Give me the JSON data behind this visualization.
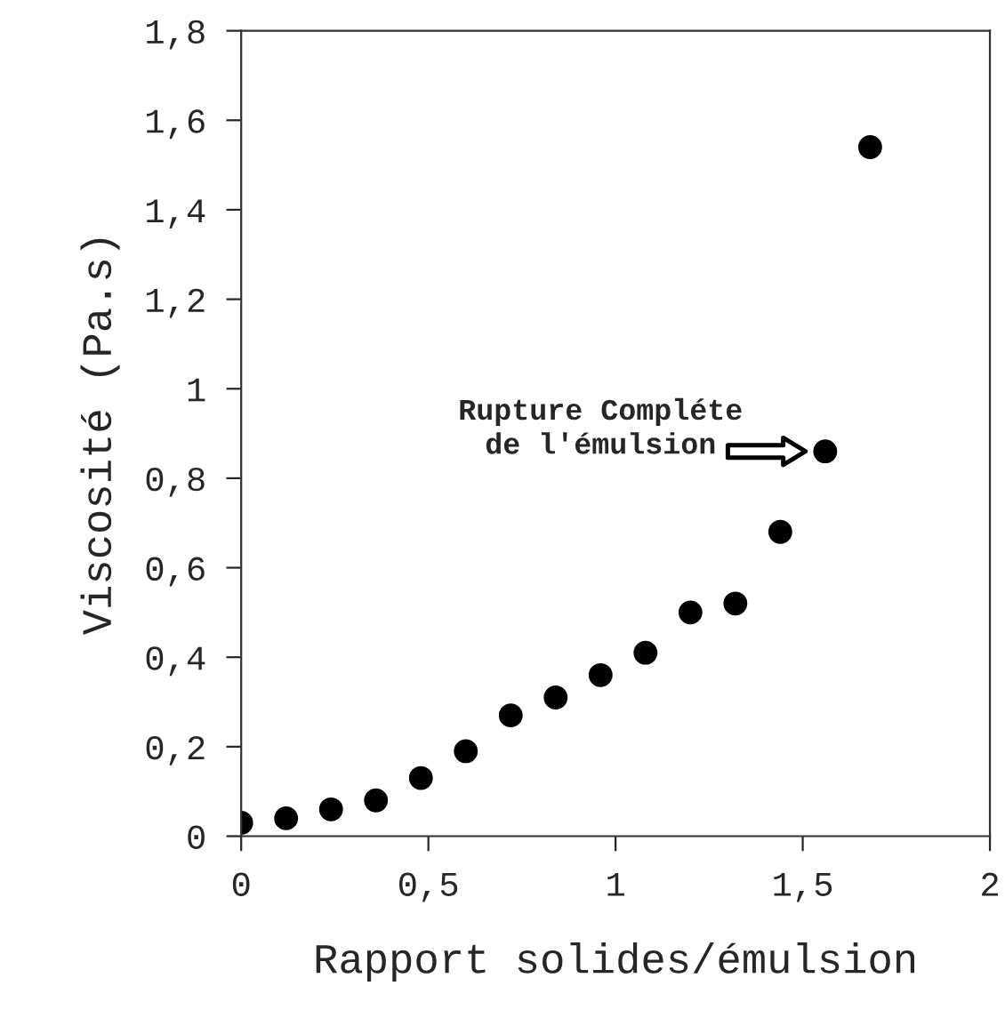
{
  "chart_data": {
    "type": "scatter",
    "xlabel": "Rapport solides/émulsion",
    "ylabel": "Viscosité (Pa.s)",
    "x": [
      0,
      0.12,
      0.24,
      0.36,
      0.48,
      0.6,
      0.72,
      0.84,
      0.96,
      1.08,
      1.2,
      1.32,
      1.44,
      1.56,
      1.68
    ],
    "series": [
      {
        "color": "#000000",
        "values": [
          0.03,
          0.04,
          0.06,
          0.08,
          0.13,
          0.19,
          0.27,
          0.31,
          0.36,
          0.41,
          0.5,
          0.52,
          0.68,
          0.86,
          1.54
        ]
      }
    ],
    "xlim": [
      0,
      2
    ],
    "ylim": [
      0,
      1.8
    ],
    "xticks": [
      0,
      {
        "value": 0.5,
        "label": "0,5"
      },
      1,
      {
        "value": 1.5,
        "label": "1,5"
      },
      2
    ],
    "yticks": [
      0,
      {
        "value": 0.2,
        "label": "0,2"
      },
      {
        "value": 0.4,
        "label": "0,4"
      },
      {
        "value": 0.6,
        "label": "0,6"
      },
      {
        "value": 0.8,
        "label": "0,8"
      },
      1,
      {
        "value": 1.2,
        "label": "1,2"
      },
      {
        "value": 1.4,
        "label": "1,4"
      },
      {
        "value": 1.6,
        "label": "1,6"
      },
      {
        "value": 1.8,
        "label": "1,8"
      }
    ],
    "annotations": [
      {
        "text": "Rupture Compléte\nde l'émulsion",
        "x": 1.56,
        "y": 0.86
      }
    ],
    "grid": false,
    "legend": false,
    "marker": "circle"
  }
}
